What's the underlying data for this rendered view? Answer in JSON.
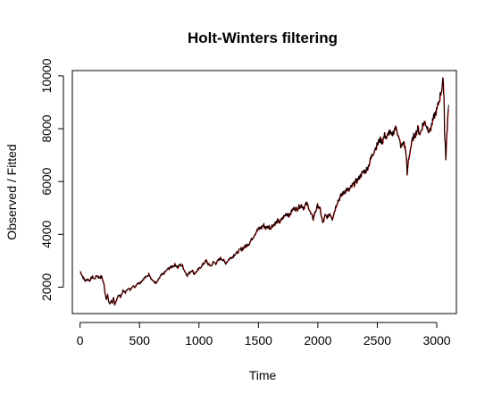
{
  "chart_data": {
    "type": "line",
    "title": "Holt-Winters filtering",
    "xlabel": "Time",
    "ylabel": "Observed / Fitted",
    "xlim": [
      -65,
      3165
    ],
    "ylim": [
      1000,
      10200
    ],
    "x_ticks": [
      0,
      500,
      1000,
      1500,
      2000,
      2500,
      3000
    ],
    "y_ticks": [
      2000,
      4000,
      6000,
      8000,
      10000
    ],
    "grid": false,
    "legend": "none",
    "series": [
      {
        "role": "observed",
        "color": "#000000",
        "points": [
          [
            0,
            2600
          ],
          [
            20,
            2400
          ],
          [
            40,
            2250
          ],
          [
            60,
            2300
          ],
          [
            80,
            2250
          ],
          [
            100,
            2400
          ],
          [
            120,
            2300
          ],
          [
            140,
            2450
          ],
          [
            160,
            2350
          ],
          [
            180,
            2400
          ],
          [
            200,
            2100
          ],
          [
            210,
            1750
          ],
          [
            220,
            1550
          ],
          [
            230,
            1700
          ],
          [
            240,
            1450
          ],
          [
            250,
            1350
          ],
          [
            260,
            1500
          ],
          [
            270,
            1400
          ],
          [
            280,
            1600
          ],
          [
            290,
            1300
          ],
          [
            300,
            1450
          ],
          [
            320,
            1700
          ],
          [
            340,
            1650
          ],
          [
            360,
            1850
          ],
          [
            380,
            1800
          ],
          [
            400,
            1950
          ],
          [
            420,
            1900
          ],
          [
            440,
            2050
          ],
          [
            460,
            2000
          ],
          [
            480,
            2150
          ],
          [
            500,
            2150
          ],
          [
            520,
            2250
          ],
          [
            540,
            2350
          ],
          [
            560,
            2400
          ],
          [
            580,
            2500
          ],
          [
            600,
            2300
          ],
          [
            620,
            2200
          ],
          [
            640,
            2150
          ],
          [
            660,
            2300
          ],
          [
            680,
            2450
          ],
          [
            700,
            2500
          ],
          [
            720,
            2600
          ],
          [
            740,
            2700
          ],
          [
            760,
            2750
          ],
          [
            780,
            2800
          ],
          [
            800,
            2850
          ],
          [
            820,
            2750
          ],
          [
            840,
            2850
          ],
          [
            860,
            2800
          ],
          [
            880,
            2600
          ],
          [
            900,
            2450
          ],
          [
            920,
            2550
          ],
          [
            940,
            2650
          ],
          [
            960,
            2500
          ],
          [
            980,
            2600
          ],
          [
            1000,
            2700
          ],
          [
            1020,
            2800
          ],
          [
            1040,
            2900
          ],
          [
            1060,
            3000
          ],
          [
            1080,
            2850
          ],
          [
            1100,
            2800
          ],
          [
            1120,
            2950
          ],
          [
            1140,
            2900
          ],
          [
            1160,
            3000
          ],
          [
            1180,
            3100
          ],
          [
            1200,
            3050
          ],
          [
            1220,
            2900
          ],
          [
            1240,
            3000
          ],
          [
            1260,
            3100
          ],
          [
            1280,
            3150
          ],
          [
            1300,
            3250
          ],
          [
            1320,
            3300
          ],
          [
            1340,
            3400
          ],
          [
            1360,
            3450
          ],
          [
            1380,
            3500
          ],
          [
            1400,
            3600
          ],
          [
            1420,
            3650
          ],
          [
            1440,
            3800
          ],
          [
            1460,
            3950
          ],
          [
            1480,
            4100
          ],
          [
            1500,
            4200
          ],
          [
            1520,
            4250
          ],
          [
            1540,
            4350
          ],
          [
            1560,
            4250
          ],
          [
            1580,
            4300
          ],
          [
            1600,
            4250
          ],
          [
            1620,
            4350
          ],
          [
            1640,
            4400
          ],
          [
            1660,
            4500
          ],
          [
            1680,
            4450
          ],
          [
            1700,
            4600
          ],
          [
            1720,
            4700
          ],
          [
            1740,
            4800
          ],
          [
            1760,
            4700
          ],
          [
            1780,
            4900
          ],
          [
            1800,
            5000
          ],
          [
            1820,
            4950
          ],
          [
            1840,
            5050
          ],
          [
            1860,
            5100
          ],
          [
            1880,
            5000
          ],
          [
            1900,
            5150
          ],
          [
            1920,
            5050
          ],
          [
            1940,
            4750
          ],
          [
            1960,
            4600
          ],
          [
            1980,
            4900
          ],
          [
            2000,
            5100
          ],
          [
            2020,
            4900
          ],
          [
            2040,
            4400
          ],
          [
            2060,
            4700
          ],
          [
            2080,
            4650
          ],
          [
            2100,
            4800
          ],
          [
            2120,
            4600
          ],
          [
            2140,
            4900
          ],
          [
            2160,
            5200
          ],
          [
            2180,
            5350
          ],
          [
            2200,
            5500
          ],
          [
            2220,
            5600
          ],
          [
            2240,
            5700
          ],
          [
            2260,
            5650
          ],
          [
            2280,
            5800
          ],
          [
            2300,
            5900
          ],
          [
            2320,
            6000
          ],
          [
            2340,
            6100
          ],
          [
            2360,
            6250
          ],
          [
            2380,
            6350
          ],
          [
            2400,
            6400
          ],
          [
            2420,
            6550
          ],
          [
            2440,
            6800
          ],
          [
            2460,
            7050
          ],
          [
            2480,
            7250
          ],
          [
            2500,
            7400
          ],
          [
            2520,
            7600
          ],
          [
            2540,
            7500
          ],
          [
            2560,
            7750
          ],
          [
            2580,
            7650
          ],
          [
            2600,
            7900
          ],
          [
            2620,
            7700
          ],
          [
            2640,
            7950
          ],
          [
            2660,
            8050
          ],
          [
            2680,
            7600
          ],
          [
            2700,
            7300
          ],
          [
            2720,
            7500
          ],
          [
            2740,
            7100
          ],
          [
            2750,
            6250
          ],
          [
            2760,
            6800
          ],
          [
            2780,
            7300
          ],
          [
            2800,
            7650
          ],
          [
            2820,
            7800
          ],
          [
            2840,
            8000
          ],
          [
            2860,
            7800
          ],
          [
            2880,
            8150
          ],
          [
            2900,
            8250
          ],
          [
            2920,
            8050
          ],
          [
            2940,
            7900
          ],
          [
            2960,
            8200
          ],
          [
            2980,
            8500
          ],
          [
            3000,
            8700
          ],
          [
            3020,
            9100
          ],
          [
            3040,
            9500
          ],
          [
            3050,
            9800
          ],
          [
            3060,
            9300
          ],
          [
            3065,
            7800
          ],
          [
            3070,
            7500
          ],
          [
            3075,
            6800
          ],
          [
            3080,
            7400
          ],
          [
            3090,
            8300
          ],
          [
            3100,
            8900
          ]
        ]
      },
      {
        "role": "fitted",
        "color": "#ff0000"
      }
    ]
  }
}
